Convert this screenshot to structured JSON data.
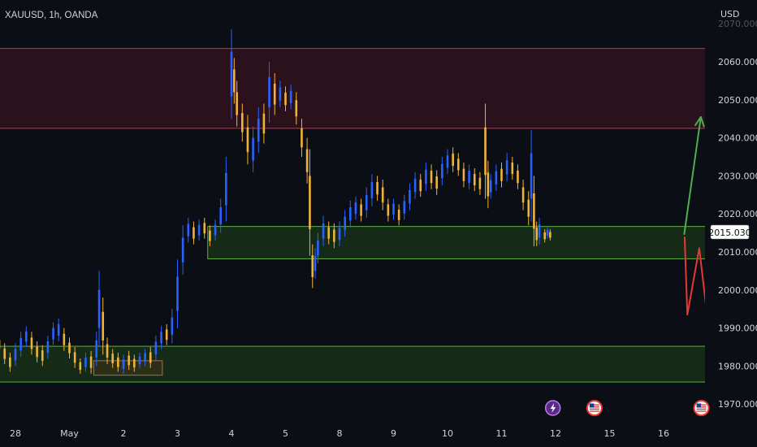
{
  "header": {
    "symbol": "XAUUSD, 1h, OANDA",
    "currency": "USD"
  },
  "price_label": "2015.030",
  "chart_data": {
    "type": "candlestick",
    "ylabel": "USD",
    "ylim": [
      1967,
      2073
    ],
    "y_ticks": [
      1970,
      1980,
      1990,
      2000,
      2010,
      2020,
      2030,
      2040,
      2050,
      2060,
      2070
    ],
    "y_tick_labels": [
      "1970.000",
      "1980.000",
      "1990.000",
      "2000.000",
      "2010.000",
      "2020.000",
      "2030.000",
      "2040.000",
      "2050.000",
      "2060.000",
      "2070.000"
    ],
    "x_ticks": [
      {
        "label": "28",
        "day": -2
      },
      {
        "label": "May",
        "day": -1
      },
      {
        "label": "2",
        "day": 0
      },
      {
        "label": "3",
        "day": 1
      },
      {
        "label": "4",
        "day": 2
      },
      {
        "label": "5",
        "day": 3
      },
      {
        "label": "8",
        "day": 4
      },
      {
        "label": "9",
        "day": 5
      },
      {
        "label": "10",
        "day": 6
      },
      {
        "label": "11",
        "day": 7
      },
      {
        "label": "12",
        "day": 8
      },
      {
        "label": "15",
        "day": 9
      },
      {
        "label": "16",
        "day": 10
      }
    ],
    "current_price": 2015.03,
    "up_color": "#2962ff",
    "down_color": "#f0b33a",
    "zones": [
      {
        "name": "supply-zone-top",
        "x_from": -3,
        "x_to": 11.03,
        "y_from": 2042.5,
        "y_to": 2063.5,
        "fill": "rgba(120,25,45,0.30)",
        "stroke": "#c2334a"
      },
      {
        "name": "demand-zone-mid",
        "x_from": 1.56,
        "x_to": 11.03,
        "y_from": 2008.2,
        "y_to": 2016.7,
        "fill": "rgba(40,95,30,0.35)",
        "stroke": "#5fae45"
      },
      {
        "name": "demand-zone-bottom",
        "x_from": -3,
        "x_to": 11.03,
        "y_from": 1975.8,
        "y_to": 1985.2,
        "fill": "rgba(40,95,30,0.35)",
        "stroke": "#5fae45"
      },
      {
        "name": "consolidation-box",
        "x_from": -0.55,
        "x_to": 0.72,
        "y_from": 1977.6,
        "y_to": 1981.4,
        "fill": "rgba(120,60,20,0.25)",
        "stroke": "#c0653a"
      }
    ],
    "arrows": [
      {
        "name": "bullish-arrow",
        "color": "#4caf50",
        "points": [
          [
            10.38,
            2014.5
          ],
          [
            10.69,
            2045.5
          ]
        ]
      },
      {
        "name": "bearish-arrow",
        "color": "#e53935",
        "points": [
          [
            10.39,
            2014.0
          ],
          [
            10.44,
            1993.5
          ],
          [
            10.66,
            2011.0
          ],
          [
            10.88,
            1984.5
          ]
        ]
      }
    ],
    "candles": [
      {
        "day": -3.0,
        "high": 1985.0,
        "low": 1979.0,
        "dir": "down"
      },
      {
        "day": -2.9,
        "high": 1988.0,
        "low": 1982.0,
        "dir": "up"
      },
      {
        "day": -2.8,
        "high": 1990.5,
        "low": 1985.5,
        "dir": "up"
      },
      {
        "day": -2.7,
        "high": 1989.5,
        "low": 1984.0,
        "dir": "down"
      },
      {
        "day": -2.6,
        "high": 1987.0,
        "low": 1981.0,
        "dir": "down"
      },
      {
        "day": -2.5,
        "high": 1991.0,
        "low": 1985.0,
        "dir": "up"
      },
      {
        "day": -2.4,
        "high": 1990.0,
        "low": 1984.5,
        "dir": "down"
      },
      {
        "day": -2.3,
        "high": 1988.0,
        "low": 1983.5,
        "dir": "down"
      },
      {
        "day": -2.2,
        "high": 1986.0,
        "low": 1980.5,
        "dir": "down"
      },
      {
        "day": -2.1,
        "high": 1983.5,
        "low": 1978.5,
        "dir": "down"
      },
      {
        "day": -2.0,
        "high": 1986.0,
        "low": 1980.0,
        "dir": "up"
      },
      {
        "day": -1.9,
        "high": 1989.0,
        "low": 1982.5,
        "dir": "up"
      },
      {
        "day": -1.8,
        "high": 1990.5,
        "low": 1985.0,
        "dir": "up"
      },
      {
        "day": -1.7,
        "high": 1989.0,
        "low": 1983.0,
        "dir": "down"
      },
      {
        "day": -1.6,
        "high": 1986.5,
        "low": 1981.0,
        "dir": "down"
      },
      {
        "day": -1.5,
        "high": 1985.5,
        "low": 1980.0,
        "dir": "down"
      },
      {
        "day": -1.4,
        "high": 1988.0,
        "low": 1982.0,
        "dir": "up"
      },
      {
        "day": -1.3,
        "high": 1991.5,
        "low": 1985.5,
        "dir": "up"
      },
      {
        "day": -1.2,
        "high": 1992.5,
        "low": 1986.5,
        "dir": "up"
      },
      {
        "day": -1.1,
        "high": 1990.0,
        "low": 1984.0,
        "dir": "down"
      },
      {
        "day": -1.0,
        "high": 1987.5,
        "low": 1982.0,
        "dir": "down"
      },
      {
        "day": -0.9,
        "high": 1985.0,
        "low": 1979.5,
        "dir": "down"
      },
      {
        "day": -0.8,
        "high": 1982.0,
        "low": 1978.0,
        "dir": "down"
      },
      {
        "day": -0.7,
        "high": 1983.5,
        "low": 1978.5,
        "dir": "up"
      },
      {
        "day": -0.6,
        "high": 1984.0,
        "low": 1978.0,
        "dir": "down"
      },
      {
        "day": -0.5,
        "high": 1989.0,
        "low": 1980.0,
        "dir": "up"
      },
      {
        "day": -0.45,
        "high": 2005.0,
        "low": 1985.0,
        "dir": "up"
      },
      {
        "day": -0.38,
        "high": 1998.0,
        "low": 1983.0,
        "dir": "down"
      },
      {
        "day": -0.3,
        "high": 1987.5,
        "low": 1980.5,
        "dir": "down"
      },
      {
        "day": -0.2,
        "high": 1984.5,
        "low": 1979.5,
        "dir": "down"
      },
      {
        "day": -0.1,
        "high": 1983.5,
        "low": 1978.5,
        "dir": "down"
      },
      {
        "day": 0.0,
        "high": 1983.0,
        "low": 1978.0,
        "dir": "up"
      },
      {
        "day": 0.1,
        "high": 1984.0,
        "low": 1979.0,
        "dir": "down"
      },
      {
        "day": 0.2,
        "high": 1983.0,
        "low": 1978.5,
        "dir": "down"
      },
      {
        "day": 0.3,
        "high": 1983.5,
        "low": 1979.5,
        "dir": "up"
      },
      {
        "day": 0.4,
        "high": 1984.5,
        "low": 1980.0,
        "dir": "up"
      },
      {
        "day": 0.5,
        "high": 1985.0,
        "low": 1979.5,
        "dir": "down"
      },
      {
        "day": 0.6,
        "high": 1988.0,
        "low": 1981.5,
        "dir": "up"
      },
      {
        "day": 0.7,
        "high": 1990.5,
        "low": 1984.5,
        "dir": "up"
      },
      {
        "day": 0.8,
        "high": 1991.0,
        "low": 1985.5,
        "dir": "down"
      },
      {
        "day": 0.9,
        "high": 1995.0,
        "low": 1986.0,
        "dir": "up"
      },
      {
        "day": 1.0,
        "high": 2008.0,
        "low": 1990.0,
        "dir": "up"
      },
      {
        "day": 1.1,
        "high": 2017.0,
        "low": 2004.0,
        "dir": "up"
      },
      {
        "day": 1.2,
        "high": 2019.0,
        "low": 2012.5,
        "dir": "up"
      },
      {
        "day": 1.3,
        "high": 2018.0,
        "low": 2012.0,
        "dir": "down"
      },
      {
        "day": 1.4,
        "high": 2018.5,
        "low": 2013.0,
        "dir": "up"
      },
      {
        "day": 1.5,
        "high": 2019.0,
        "low": 2013.5,
        "dir": "down"
      },
      {
        "day": 1.6,
        "high": 2017.0,
        "low": 2011.5,
        "dir": "down"
      },
      {
        "day": 1.7,
        "high": 2018.5,
        "low": 2013.0,
        "dir": "up"
      },
      {
        "day": 1.8,
        "high": 2024.0,
        "low": 2015.0,
        "dir": "up"
      },
      {
        "day": 1.9,
        "high": 2035.0,
        "low": 2018.0,
        "dir": "up"
      },
      {
        "day": 2.0,
        "high": 2068.5,
        "low": 2045.0,
        "dir": "up"
      },
      {
        "day": 2.05,
        "high": 2061.0,
        "low": 2049.0,
        "dir": "down"
      },
      {
        "day": 2.1,
        "high": 2055.0,
        "low": 2043.0,
        "dir": "down"
      },
      {
        "day": 2.2,
        "high": 2049.0,
        "low": 2039.0,
        "dir": "down"
      },
      {
        "day": 2.3,
        "high": 2046.0,
        "low": 2033.0,
        "dir": "down"
      },
      {
        "day": 2.4,
        "high": 2043.0,
        "low": 2031.0,
        "dir": "up"
      },
      {
        "day": 2.5,
        "high": 2048.0,
        "low": 2036.0,
        "dir": "up"
      },
      {
        "day": 2.6,
        "high": 2049.0,
        "low": 2038.5,
        "dir": "down"
      },
      {
        "day": 2.7,
        "high": 2060.0,
        "low": 2044.0,
        "dir": "up"
      },
      {
        "day": 2.8,
        "high": 2057.0,
        "low": 2046.0,
        "dir": "down"
      },
      {
        "day": 2.9,
        "high": 2055.0,
        "low": 2048.0,
        "dir": "up"
      },
      {
        "day": 3.0,
        "high": 2053.5,
        "low": 2047.0,
        "dir": "down"
      },
      {
        "day": 3.1,
        "high": 2054.0,
        "low": 2047.5,
        "dir": "up"
      },
      {
        "day": 3.2,
        "high": 2052.0,
        "low": 2043.5,
        "dir": "down"
      },
      {
        "day": 3.3,
        "high": 2045.0,
        "low": 2035.0,
        "dir": "down"
      },
      {
        "day": 3.4,
        "high": 2040.0,
        "low": 2028.0,
        "dir": "down"
      },
      {
        "day": 3.45,
        "high": 2037.0,
        "low": 2009.0,
        "dir": "down"
      },
      {
        "day": 3.5,
        "high": 2012.0,
        "low": 2000.5,
        "dir": "down"
      },
      {
        "day": 3.55,
        "high": 2011.0,
        "low": 2003.0,
        "dir": "up"
      },
      {
        "day": 3.6,
        "high": 2015.0,
        "low": 2007.0,
        "dir": "up"
      },
      {
        "day": 3.7,
        "high": 2019.5,
        "low": 2011.5,
        "dir": "up"
      },
      {
        "day": 3.8,
        "high": 2018.0,
        "low": 2012.0,
        "dir": "down"
      },
      {
        "day": 3.9,
        "high": 2017.5,
        "low": 2011.0,
        "dir": "down"
      },
      {
        "day": 4.0,
        "high": 2018.0,
        "low": 2011.5,
        "dir": "up"
      },
      {
        "day": 4.1,
        "high": 2021.0,
        "low": 2014.0,
        "dir": "up"
      },
      {
        "day": 4.2,
        "high": 2023.5,
        "low": 2016.5,
        "dir": "up"
      },
      {
        "day": 4.3,
        "high": 2024.5,
        "low": 2018.5,
        "dir": "up"
      },
      {
        "day": 4.4,
        "high": 2024.0,
        "low": 2018.0,
        "dir": "down"
      },
      {
        "day": 4.5,
        "high": 2027.0,
        "low": 2019.0,
        "dir": "up"
      },
      {
        "day": 4.6,
        "high": 2030.5,
        "low": 2022.0,
        "dir": "up"
      },
      {
        "day": 4.7,
        "high": 2030.0,
        "low": 2023.5,
        "dir": "down"
      },
      {
        "day": 4.8,
        "high": 2029.0,
        "low": 2021.0,
        "dir": "down"
      },
      {
        "day": 4.9,
        "high": 2024.0,
        "low": 2018.0,
        "dir": "down"
      },
      {
        "day": 5.0,
        "high": 2024.0,
        "low": 2018.5,
        "dir": "up"
      },
      {
        "day": 5.1,
        "high": 2022.5,
        "low": 2017.0,
        "dir": "down"
      },
      {
        "day": 5.2,
        "high": 2025.0,
        "low": 2018.5,
        "dir": "up"
      },
      {
        "day": 5.3,
        "high": 2028.0,
        "low": 2021.0,
        "dir": "up"
      },
      {
        "day": 5.4,
        "high": 2031.0,
        "low": 2024.0,
        "dir": "up"
      },
      {
        "day": 5.5,
        "high": 2030.5,
        "low": 2024.5,
        "dir": "down"
      },
      {
        "day": 5.6,
        "high": 2033.5,
        "low": 2026.0,
        "dir": "up"
      },
      {
        "day": 5.7,
        "high": 2033.0,
        "low": 2026.5,
        "dir": "down"
      },
      {
        "day": 5.8,
        "high": 2031.5,
        "low": 2025.0,
        "dir": "down"
      },
      {
        "day": 5.9,
        "high": 2035.0,
        "low": 2027.5,
        "dir": "up"
      },
      {
        "day": 6.0,
        "high": 2037.0,
        "low": 2030.5,
        "dir": "up"
      },
      {
        "day": 6.1,
        "high": 2037.5,
        "low": 2031.0,
        "dir": "down"
      },
      {
        "day": 6.2,
        "high": 2036.0,
        "low": 2030.0,
        "dir": "down"
      },
      {
        "day": 6.3,
        "high": 2033.5,
        "low": 2027.0,
        "dir": "down"
      },
      {
        "day": 6.4,
        "high": 2033.0,
        "low": 2026.5,
        "dir": "up"
      },
      {
        "day": 6.5,
        "high": 2032.0,
        "low": 2026.0,
        "dir": "down"
      },
      {
        "day": 6.6,
        "high": 2031.0,
        "low": 2025.0,
        "dir": "down"
      },
      {
        "day": 6.7,
        "high": 2049.0,
        "low": 2024.0,
        "dir": "down"
      },
      {
        "day": 6.75,
        "high": 2034.0,
        "low": 2021.5,
        "dir": "down"
      },
      {
        "day": 6.8,
        "high": 2030.5,
        "low": 2024.0,
        "dir": "up"
      },
      {
        "day": 6.9,
        "high": 2033.0,
        "low": 2026.0,
        "dir": "up"
      },
      {
        "day": 7.0,
        "high": 2033.5,
        "low": 2027.0,
        "dir": "down"
      },
      {
        "day": 7.1,
        "high": 2036.0,
        "low": 2028.5,
        "dir": "up"
      },
      {
        "day": 7.2,
        "high": 2035.0,
        "low": 2029.0,
        "dir": "down"
      },
      {
        "day": 7.3,
        "high": 2033.0,
        "low": 2026.5,
        "dir": "down"
      },
      {
        "day": 7.4,
        "high": 2029.0,
        "low": 2021.0,
        "dir": "down"
      },
      {
        "day": 7.5,
        "high": 2026.0,
        "low": 2017.0,
        "dir": "down"
      },
      {
        "day": 7.55,
        "high": 2042.0,
        "low": 2018.0,
        "dir": "up"
      },
      {
        "day": 7.6,
        "high": 2030.0,
        "low": 2011.5,
        "dir": "down"
      },
      {
        "day": 7.65,
        "high": 2018.0,
        "low": 2011.5,
        "dir": "down"
      },
      {
        "day": 7.7,
        "high": 2019.0,
        "low": 2012.0,
        "dir": "up"
      },
      {
        "day": 7.8,
        "high": 2016.0,
        "low": 2012.5,
        "dir": "down"
      },
      {
        "day": 7.85,
        "high": 2016.5,
        "low": 2013.5,
        "dir": "up"
      },
      {
        "day": 7.9,
        "high": 2016.0,
        "low": 2013.0,
        "dir": "down"
      }
    ]
  },
  "event_icons": [
    {
      "name": "lightning-event-icon",
      "day": 7.95,
      "glyph": "⚡"
    },
    {
      "name": "us-flag-event-icon",
      "day": 8.72,
      "glyph": "🇺🇸"
    },
    {
      "name": "us-flag-event-icon-2",
      "day": 10.7,
      "glyph": "🇺🇸"
    }
  ]
}
